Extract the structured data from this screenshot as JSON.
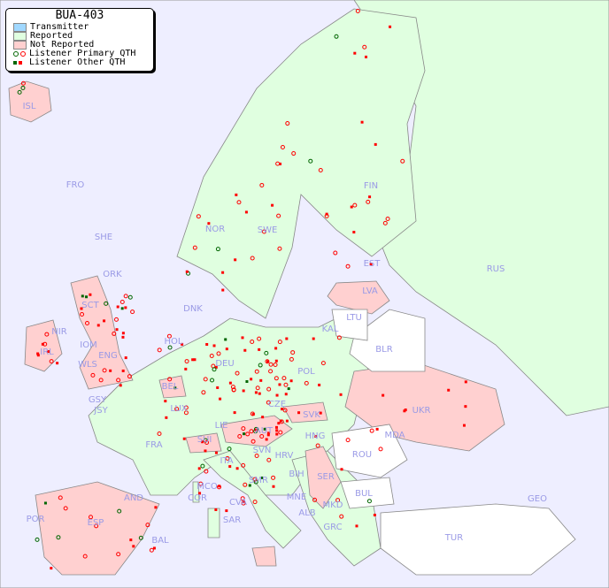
{
  "legend": {
    "title": "BUA-403",
    "items": [
      {
        "label": "Transmitter",
        "color": "#a0d8ff"
      },
      {
        "label": "Reported",
        "color": "#e0ffe0"
      },
      {
        "label": "Not Reported",
        "color": "#ffd0d0"
      },
      {
        "label": "Listener Primary QTH",
        "colors": [
          "#006600",
          "#ff0000"
        ]
      },
      {
        "label": "Listener Other QTH",
        "colors": [
          "#006600",
          "#ff0000"
        ]
      }
    ]
  },
  "colors": {
    "sea": "#eeeeff",
    "reported": "#e0ffe0",
    "not_reported": "#ffd0d0",
    "unknown": "#ffffff",
    "label": "#9a9ae6"
  },
  "country_labels": [
    "ISL",
    "FRO",
    "SHE",
    "ORK",
    "NOR",
    "SWE",
    "FIN",
    "EST",
    "RUS",
    "LVA",
    "LTU",
    "KAL",
    "BLR",
    "DNK",
    "HOL",
    "BEL",
    "LUX",
    "DEU",
    "POL",
    "CZE",
    "SVK",
    "UKR",
    "MDA",
    "HNG",
    "AUT",
    "LIE",
    "SUI",
    "FRA",
    "GSY",
    "JSY",
    "IRL",
    "NIR",
    "IOM",
    "WLS",
    "SCT",
    "ENG",
    "ITA",
    "SVN",
    "HRV",
    "BIH",
    "SER",
    "ROU",
    "BUL",
    "MNE",
    "ALB",
    "MKD",
    "GRC",
    "TUR",
    "GEO",
    "COR",
    "MCO",
    "SAR",
    "AND",
    "ESP",
    "POR",
    "BAL",
    "CVA",
    "SMR"
  ]
}
